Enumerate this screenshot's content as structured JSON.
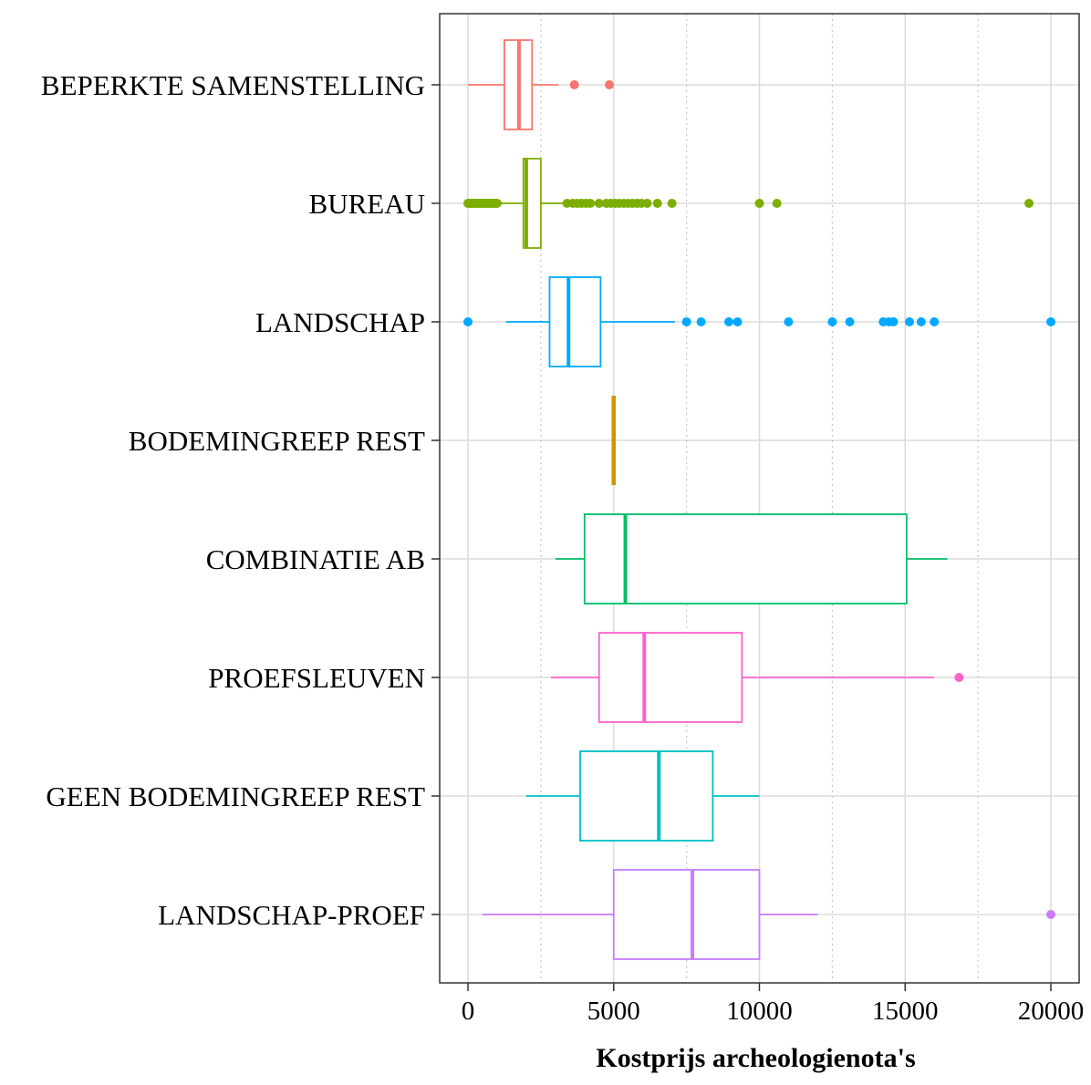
{
  "chart_data": {
    "type": "boxplot",
    "orientation": "horizontal",
    "title": "",
    "xlabel": "Kostprijs archeologienota's",
    "ylabel": "",
    "xlim": [
      -1000,
      21000
    ],
    "xticks": [
      0,
      5000,
      10000,
      15000,
      20000
    ],
    "xtick_labels": [
      "0",
      "5000",
      "10000",
      "15000",
      "20000"
    ],
    "grid": true,
    "legend": "none",
    "categories": [
      {
        "name": "BEPERKTE SAMENSTELLING",
        "color": "#F8766D",
        "whisker_low": 0,
        "q1": 1250,
        "median": 1750,
        "q3": 2200,
        "whisker_high": 3100,
        "outliers": [
          3650,
          4850
        ]
      },
      {
        "name": "BUREAU",
        "color": "#7CAE00",
        "whisker_low": 1100,
        "q1": 1900,
        "median": 2000,
        "q3": 2500,
        "whisker_high": 3300,
        "outliers": [
          0,
          50,
          100,
          150,
          200,
          250,
          300,
          350,
          400,
          450,
          500,
          550,
          600,
          650,
          700,
          750,
          800,
          850,
          900,
          950,
          1000,
          3400,
          3600,
          3750,
          3900,
          4050,
          4200,
          4500,
          4750,
          4900,
          5050,
          5200,
          5350,
          5500,
          5650,
          5800,
          5950,
          6150,
          6500,
          7000,
          10000,
          10600,
          19250
        ]
      },
      {
        "name": "LANDSCHAP",
        "color": "#00A9FF",
        "whisker_low": 1300,
        "q1": 2800,
        "median": 3450,
        "q3": 4550,
        "whisker_high": 7100,
        "outliers": [
          0,
          7500,
          8000,
          8950,
          9250,
          11000,
          12500,
          13100,
          14250,
          14450,
          14600,
          15150,
          15550,
          16000,
          20000
        ]
      },
      {
        "name": "BODEMINGREEP REST",
        "color": "#CD9600",
        "whisker_low": 5000,
        "q1": 5000,
        "median": 5000,
        "q3": 5000,
        "whisker_high": 5000,
        "outliers": []
      },
      {
        "name": "COMBINATIE AB",
        "color": "#00BE67",
        "whisker_low": 3000,
        "q1": 4000,
        "median": 5400,
        "q3": 15050,
        "whisker_high": 16450,
        "outliers": []
      },
      {
        "name": "PROEFSLEUVEN",
        "color": "#FF61CC",
        "whisker_low": 2850,
        "q1": 4500,
        "median": 6050,
        "q3": 9400,
        "whisker_high": 16000,
        "outliers": [
          16850
        ]
      },
      {
        "name": "GEEN BODEMINGREEP REST",
        "color": "#00BFC4",
        "whisker_low": 2000,
        "q1": 3850,
        "median": 6550,
        "q3": 8400,
        "whisker_high": 10000,
        "outliers": []
      },
      {
        "name": "LANDSCHAP-PROEF",
        "color": "#C77CFF",
        "whisker_low": 500,
        "q1": 5000,
        "median": 7700,
        "q3": 10000,
        "whisker_high": 12000,
        "outliers": [
          20000
        ]
      }
    ]
  }
}
